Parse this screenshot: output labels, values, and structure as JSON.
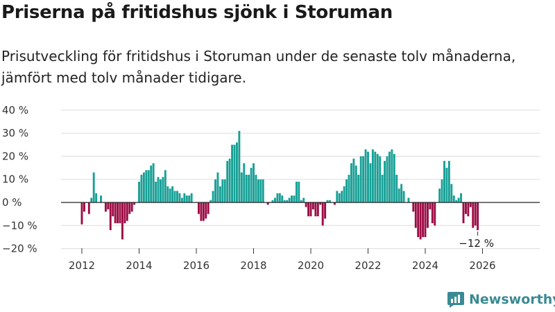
{
  "title": "Priserna på fritidshus sjönk i Storuman",
  "subtitle": "Prisutveckling för fritidshus i Storuman under de senaste tolv månaderna, jämfört med tolv månader tidigare.",
  "brand": "Newsworthy",
  "colors": {
    "positive": "#17a096",
    "negative": "#9c0b44",
    "grid": "#dcdcdc",
    "brand": "#3a8a93"
  },
  "chart_data": {
    "type": "bar",
    "title": "Priserna på fritidshus sjönk i Storuman",
    "xlabel": "",
    "ylabel": "",
    "ylim": [
      -20,
      40
    ],
    "y_ticks": [
      40,
      30,
      20,
      10,
      0,
      -10,
      -20
    ],
    "y_tick_labels": [
      "40 %",
      "30 %",
      "20 %",
      "10 %",
      "0 %",
      "−10 %",
      "−20 %"
    ],
    "x_ticks": [
      "2012",
      "2014",
      "2016",
      "2018",
      "2020",
      "2022",
      "2024",
      "2026"
    ],
    "start": "2012-01",
    "frequency": "monthly",
    "annotation": "−12 %",
    "values": [
      -9.5,
      -4,
      0,
      -5,
      2,
      13,
      4,
      0,
      3,
      0,
      -4,
      -3,
      -12,
      -6,
      -9,
      -9,
      -9,
      -16,
      -9,
      -8,
      -5,
      -4,
      -1,
      0,
      9,
      12,
      13,
      14,
      14,
      16,
      17,
      9,
      11,
      10,
      11,
      14,
      7,
      6,
      7,
      5,
      5,
      4,
      2,
      4,
      3,
      3,
      4,
      0,
      0,
      -5,
      -8,
      -8,
      -7,
      -5,
      1,
      5,
      10,
      13,
      7,
      10,
      10,
      18,
      19,
      25,
      25,
      26,
      31,
      13,
      17,
      12,
      12,
      15,
      17,
      12,
      10,
      10,
      10,
      0,
      -1,
      0,
      1,
      2,
      4,
      4,
      3,
      1,
      1,
      2,
      3,
      3,
      9,
      9,
      1,
      2,
      -2,
      -6,
      -6,
      -3,
      -6,
      -6,
      -1,
      -10,
      -7,
      1,
      1,
      0,
      -1,
      5,
      4,
      5,
      7,
      10,
      12,
      17,
      19,
      16,
      12,
      20,
      20,
      23,
      22,
      17,
      23,
      22,
      21,
      20,
      12,
      18,
      20,
      22,
      23,
      21,
      12,
      6,
      8,
      5,
      0,
      2,
      0,
      -4,
      -11,
      -15,
      -16,
      -15,
      -15,
      -11,
      -3,
      -9,
      -10,
      0,
      6,
      10,
      18,
      15,
      18,
      8,
      3,
      1,
      2,
      4,
      -9,
      -5,
      -6,
      -2,
      -11,
      -10,
      -12
    ]
  }
}
